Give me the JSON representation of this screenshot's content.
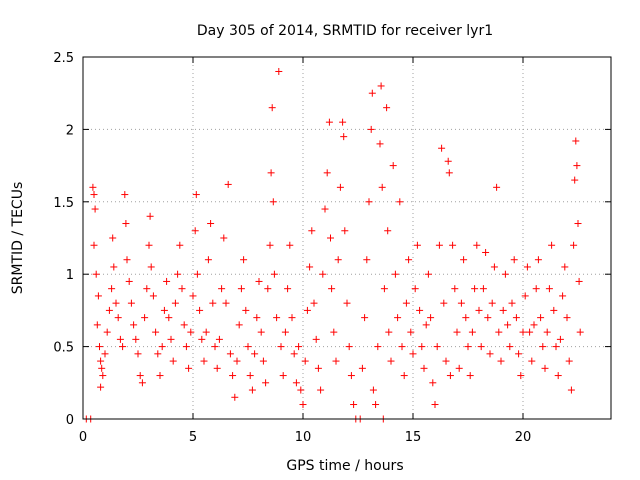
{
  "chart_data": {
    "type": "scatter",
    "title": "Day 305 of 2014, SRMTID for receiver lyr1",
    "xlabel": "GPS time / hours",
    "ylabel": "SRMTID / TECUs",
    "xlim": [
      0,
      24
    ],
    "ylim": [
      0,
      2.5
    ],
    "xticks": [
      0,
      5,
      10,
      15,
      20
    ],
    "yticks": [
      0,
      0.5,
      1,
      1.5,
      2,
      2.5
    ],
    "xtick_labels": [
      "0",
      "5",
      "10",
      "15",
      "20"
    ],
    "ytick_labels": [
      "0",
      "0.5",
      "1",
      "1.5",
      "2",
      "2.5"
    ],
    "grid": true,
    "marker": "+",
    "color": "#ff0000",
    "series": [
      {
        "name": "SRMTID",
        "points": [
          [
            0.15,
            0
          ],
          [
            0.35,
            0
          ],
          [
            0.45,
            1.6
          ],
          [
            0.5,
            1.55
          ],
          [
            0.55,
            1.45
          ],
          [
            0.5,
            1.2
          ],
          [
            0.6,
            1.0
          ],
          [
            0.7,
            0.85
          ],
          [
            0.65,
            0.65
          ],
          [
            0.75,
            0.5
          ],
          [
            0.8,
            0.4
          ],
          [
            0.85,
            0.35
          ],
          [
            0.9,
            0.3
          ],
          [
            0.8,
            0.22
          ],
          [
            1.0,
            0.45
          ],
          [
            1.1,
            0.6
          ],
          [
            1.2,
            0.75
          ],
          [
            1.3,
            0.9
          ],
          [
            1.35,
            1.25
          ],
          [
            1.4,
            1.05
          ],
          [
            1.5,
            0.8
          ],
          [
            1.6,
            0.7
          ],
          [
            1.7,
            0.55
          ],
          [
            1.8,
            0.5
          ],
          [
            1.9,
            1.55
          ],
          [
            1.95,
            1.35
          ],
          [
            2.0,
            1.1
          ],
          [
            2.1,
            0.95
          ],
          [
            2.2,
            0.8
          ],
          [
            2.3,
            0.65
          ],
          [
            2.4,
            0.55
          ],
          [
            2.5,
            0.45
          ],
          [
            2.6,
            0.3
          ],
          [
            2.7,
            0.25
          ],
          [
            2.8,
            0.7
          ],
          [
            2.9,
            0.9
          ],
          [
            3.0,
            1.2
          ],
          [
            3.05,
            1.4
          ],
          [
            3.1,
            1.05
          ],
          [
            3.2,
            0.85
          ],
          [
            3.3,
            0.6
          ],
          [
            3.4,
            0.45
          ],
          [
            3.5,
            0.3
          ],
          [
            3.6,
            0.5
          ],
          [
            3.7,
            0.75
          ],
          [
            3.8,
            0.95
          ],
          [
            3.9,
            0.7
          ],
          [
            4.0,
            0.55
          ],
          [
            4.1,
            0.4
          ],
          [
            4.2,
            0.8
          ],
          [
            4.3,
            1.0
          ],
          [
            4.4,
            1.2
          ],
          [
            4.5,
            0.9
          ],
          [
            4.6,
            0.65
          ],
          [
            4.7,
            0.5
          ],
          [
            4.8,
            0.35
          ],
          [
            4.9,
            0.6
          ],
          [
            5.0,
            0.85
          ],
          [
            5.1,
            1.3
          ],
          [
            5.15,
            1.55
          ],
          [
            5.2,
            1.0
          ],
          [
            5.3,
            0.75
          ],
          [
            5.4,
            0.55
          ],
          [
            5.5,
            0.4
          ],
          [
            5.6,
            0.6
          ],
          [
            5.7,
            1.1
          ],
          [
            5.8,
            1.35
          ],
          [
            5.9,
            0.8
          ],
          [
            6.0,
            0.5
          ],
          [
            6.1,
            0.35
          ],
          [
            6.2,
            0.55
          ],
          [
            6.3,
            0.9
          ],
          [
            6.4,
            1.25
          ],
          [
            6.5,
            0.8
          ],
          [
            6.6,
            1.62
          ],
          [
            6.7,
            0.45
          ],
          [
            6.8,
            0.3
          ],
          [
            6.9,
            0.15
          ],
          [
            7.0,
            0.4
          ],
          [
            7.1,
            0.65
          ],
          [
            7.2,
            0.9
          ],
          [
            7.3,
            1.1
          ],
          [
            7.4,
            0.75
          ],
          [
            7.5,
            0.5
          ],
          [
            7.6,
            0.3
          ],
          [
            7.7,
            0.2
          ],
          [
            7.8,
            0.45
          ],
          [
            7.9,
            0.7
          ],
          [
            8.0,
            0.95
          ],
          [
            8.1,
            0.6
          ],
          [
            8.2,
            0.4
          ],
          [
            8.3,
            0.25
          ],
          [
            8.4,
            0.9
          ],
          [
            8.5,
            1.2
          ],
          [
            8.55,
            1.7
          ],
          [
            8.6,
            2.15
          ],
          [
            8.65,
            1.5
          ],
          [
            8.7,
            1.0
          ],
          [
            8.8,
            0.7
          ],
          [
            8.9,
            2.4
          ],
          [
            9.0,
            0.5
          ],
          [
            9.1,
            0.3
          ],
          [
            9.2,
            0.6
          ],
          [
            9.3,
            0.9
          ],
          [
            9.4,
            1.2
          ],
          [
            9.5,
            0.7
          ],
          [
            9.6,
            0.45
          ],
          [
            9.7,
            0.25
          ],
          [
            9.8,
            0.5
          ],
          [
            9.9,
            0.2
          ],
          [
            10.0,
            0.1
          ],
          [
            10.1,
            0.4
          ],
          [
            10.2,
            0.75
          ],
          [
            10.3,
            1.05
          ],
          [
            10.4,
            1.3
          ],
          [
            10.5,
            0.8
          ],
          [
            10.6,
            0.55
          ],
          [
            10.7,
            0.35
          ],
          [
            10.8,
            0.2
          ],
          [
            10.9,
            1.0
          ],
          [
            11.0,
            1.45
          ],
          [
            11.1,
            1.7
          ],
          [
            11.2,
            2.05
          ],
          [
            11.25,
            1.25
          ],
          [
            11.3,
            0.9
          ],
          [
            11.4,
            0.6
          ],
          [
            11.5,
            0.4
          ],
          [
            11.6,
            1.1
          ],
          [
            11.7,
            1.6
          ],
          [
            11.8,
            2.05
          ],
          [
            11.85,
            1.95
          ],
          [
            11.9,
            1.3
          ],
          [
            12.0,
            0.8
          ],
          [
            12.1,
            0.5
          ],
          [
            12.2,
            0.3
          ],
          [
            12.3,
            0.1
          ],
          [
            12.4,
            0
          ],
          [
            12.6,
            0
          ],
          [
            12.7,
            0.35
          ],
          [
            12.8,
            0.7
          ],
          [
            12.9,
            1.1
          ],
          [
            13.0,
            1.5
          ],
          [
            13.1,
            2.0
          ],
          [
            13.15,
            2.25
          ],
          [
            13.2,
            0.2
          ],
          [
            13.3,
            0.1
          ],
          [
            13.4,
            0.5
          ],
          [
            13.5,
            1.9
          ],
          [
            13.55,
            2.3
          ],
          [
            13.6,
            1.6
          ],
          [
            13.65,
            0
          ],
          [
            13.7,
            0.9
          ],
          [
            13.8,
            2.15
          ],
          [
            13.85,
            1.3
          ],
          [
            13.9,
            0.6
          ],
          [
            14.0,
            0.4
          ],
          [
            14.1,
            1.75
          ],
          [
            14.2,
            1.0
          ],
          [
            14.3,
            0.7
          ],
          [
            14.4,
            1.5
          ],
          [
            14.5,
            0.5
          ],
          [
            14.6,
            0.3
          ],
          [
            14.7,
            0.8
          ],
          [
            14.8,
            1.1
          ],
          [
            14.9,
            0.6
          ],
          [
            15.0,
            0.45
          ],
          [
            15.1,
            0.9
          ],
          [
            15.2,
            1.2
          ],
          [
            15.3,
            0.75
          ],
          [
            15.4,
            0.5
          ],
          [
            15.5,
            0.35
          ],
          [
            15.6,
            0.65
          ],
          [
            15.7,
            1.0
          ],
          [
            15.8,
            0.7
          ],
          [
            15.9,
            0.25
          ],
          [
            16.0,
            0.1
          ],
          [
            16.1,
            0.5
          ],
          [
            16.2,
            1.2
          ],
          [
            16.3,
            1.87
          ],
          [
            16.4,
            0.8
          ],
          [
            16.5,
            0.4
          ],
          [
            16.6,
            1.78
          ],
          [
            16.65,
            1.7
          ],
          [
            16.7,
            0.3
          ],
          [
            16.8,
            1.2
          ],
          [
            16.9,
            0.9
          ],
          [
            17.0,
            0.6
          ],
          [
            17.1,
            0.35
          ],
          [
            17.2,
            0.8
          ],
          [
            17.3,
            1.1
          ],
          [
            17.4,
            0.7
          ],
          [
            17.5,
            0.5
          ],
          [
            17.6,
            0.3
          ],
          [
            17.7,
            0.6
          ],
          [
            17.8,
            0.9
          ],
          [
            17.9,
            1.2
          ],
          [
            18.0,
            0.75
          ],
          [
            18.1,
            0.5
          ],
          [
            18.2,
            0.9
          ],
          [
            18.3,
            1.15
          ],
          [
            18.4,
            0.7
          ],
          [
            18.5,
            0.45
          ],
          [
            18.6,
            0.8
          ],
          [
            18.7,
            1.05
          ],
          [
            18.8,
            1.6
          ],
          [
            18.9,
            0.6
          ],
          [
            19.0,
            0.4
          ],
          [
            19.1,
            0.75
          ],
          [
            19.2,
            1.0
          ],
          [
            19.3,
            0.65
          ],
          [
            19.4,
            0.5
          ],
          [
            19.5,
            0.8
          ],
          [
            19.6,
            1.1
          ],
          [
            19.7,
            0.7
          ],
          [
            19.8,
            0.45
          ],
          [
            19.9,
            0.3
          ],
          [
            20.0,
            0.6
          ],
          [
            20.1,
            0.85
          ],
          [
            20.2,
            1.05
          ],
          [
            20.3,
            0.6
          ],
          [
            20.4,
            0.4
          ],
          [
            20.5,
            0.65
          ],
          [
            20.6,
            0.9
          ],
          [
            20.7,
            1.1
          ],
          [
            20.8,
            0.7
          ],
          [
            20.9,
            0.5
          ],
          [
            21.0,
            0.35
          ],
          [
            21.1,
            0.6
          ],
          [
            21.2,
            0.9
          ],
          [
            21.3,
            1.2
          ],
          [
            21.4,
            0.75
          ],
          [
            21.5,
            0.5
          ],
          [
            21.6,
            0.3
          ],
          [
            21.7,
            0.55
          ],
          [
            21.8,
            0.85
          ],
          [
            21.9,
            1.05
          ],
          [
            22.0,
            0.7
          ],
          [
            22.1,
            0.4
          ],
          [
            22.2,
            0.2
          ],
          [
            22.3,
            1.2
          ],
          [
            22.35,
            1.65
          ],
          [
            22.4,
            1.92
          ],
          [
            22.45,
            1.75
          ],
          [
            22.5,
            1.35
          ],
          [
            22.55,
            0.95
          ],
          [
            22.6,
            0.6
          ]
        ]
      }
    ]
  }
}
